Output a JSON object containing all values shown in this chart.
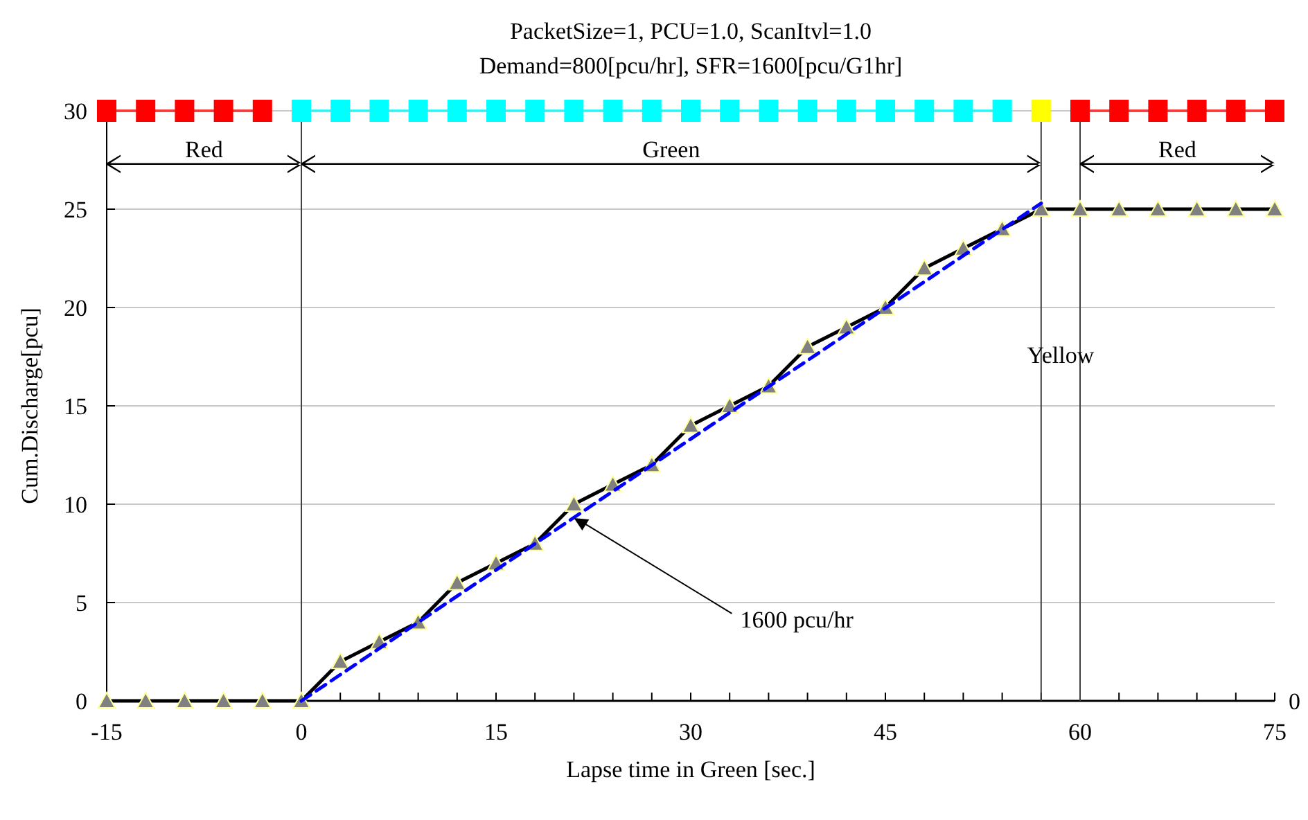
{
  "chart_data": {
    "type": "line",
    "title": "PacketSize=1, PCU=1.0, ScanItvl=1.0",
    "subtitle": "Demand=800[pcu/hr], SFR=1600[pcu/G1hr]",
    "xlabel": "Lapse time in Green [sec.]",
    "ylabel": "Cum.Discharge[pcu]",
    "x": [
      -15,
      -12,
      -9,
      -6,
      -3,
      0,
      3,
      6,
      9,
      12,
      15,
      18,
      21,
      24,
      27,
      30,
      33,
      36,
      39,
      42,
      45,
      48,
      51,
      54,
      57,
      60,
      63,
      66,
      69,
      72,
      75
    ],
    "series": [
      {
        "color": "#000000",
        "marker": "triangle",
        "values": [
          0,
          0,
          0,
          0,
          0,
          0,
          2,
          3,
          4,
          6,
          7,
          8,
          10,
          11,
          12,
          14,
          15,
          16,
          18,
          19,
          20,
          22,
          23,
          24,
          25,
          25,
          25,
          25,
          25,
          25,
          25
        ]
      },
      {
        "color": "#0000ff",
        "marker": "none",
        "line_style": "dashed",
        "x": [
          0,
          57
        ],
        "values": [
          0,
          25.3
        ]
      },
      {
        "color": "#ff0000",
        "marker": "square",
        "x": [
          -15,
          -12,
          -9,
          -6,
          -3,
          30,
          60,
          63,
          66,
          69,
          72,
          75
        ],
        "values": [
          30,
          30,
          30,
          30,
          30,
          null,
          30,
          30,
          30,
          30,
          30,
          30
        ]
      },
      {
        "color": "#00ffff",
        "marker": "square",
        "x": [
          0,
          3,
          6,
          9,
          12,
          15,
          18,
          21,
          24,
          27,
          30,
          33,
          36,
          39,
          42,
          45,
          48,
          51,
          54
        ],
        "values": [
          30,
          30,
          30,
          30,
          30,
          30,
          30,
          30,
          30,
          30,
          30,
          30,
          30,
          30,
          30,
          30,
          30,
          30,
          30
        ]
      },
      {
        "color": "#ffff00",
        "marker": "square",
        "x": [
          57
        ],
        "values": [
          30
        ]
      }
    ],
    "xlim": [
      -15,
      75
    ],
    "ylim": [
      0,
      30
    ],
    "xticks": [
      -15,
      {
        "value": -12,
        "label": null
      },
      {
        "value": -9,
        "label": null
      },
      {
        "value": -6,
        "label": null
      },
      {
        "value": -3,
        "label": null
      },
      0,
      {
        "value": 3,
        "label": null
      },
      {
        "value": 6,
        "label": null
      },
      {
        "value": 9,
        "label": null
      },
      {
        "value": 12,
        "label": null
      },
      15,
      {
        "value": 18,
        "label": null
      },
      {
        "value": 21,
        "label": null
      },
      {
        "value": 24,
        "label": null
      },
      {
        "value": 27,
        "label": null
      },
      30,
      {
        "value": 33,
        "label": null
      },
      {
        "value": 36,
        "label": null
      },
      {
        "value": 39,
        "label": null
      },
      {
        "value": 42,
        "label": null
      },
      45,
      {
        "value": 48,
        "label": null
      },
      {
        "value": 51,
        "label": null
      },
      {
        "value": 54,
        "label": null
      },
      {
        "value": 57,
        "label": null
      },
      60,
      {
        "value": 63,
        "label": null
      },
      {
        "value": 66,
        "label": null
      },
      {
        "value": 69,
        "label": null
      },
      {
        "value": 72,
        "label": null
      },
      75
    ],
    "yticks": [
      0,
      5,
      10,
      15,
      20,
      25,
      30
    ],
    "ref_lines": [
      {
        "axis": "x",
        "value": 0
      },
      {
        "axis": "x",
        "value": 57
      },
      {
        "axis": "x",
        "value": 60
      }
    ],
    "annotations": [
      {
        "text": "1600 pcu/hr",
        "x": 21,
        "y": 9.3
      },
      "Red",
      "Green",
      "Yellow",
      "Red",
      "0"
    ],
    "grid": "y"
  }
}
